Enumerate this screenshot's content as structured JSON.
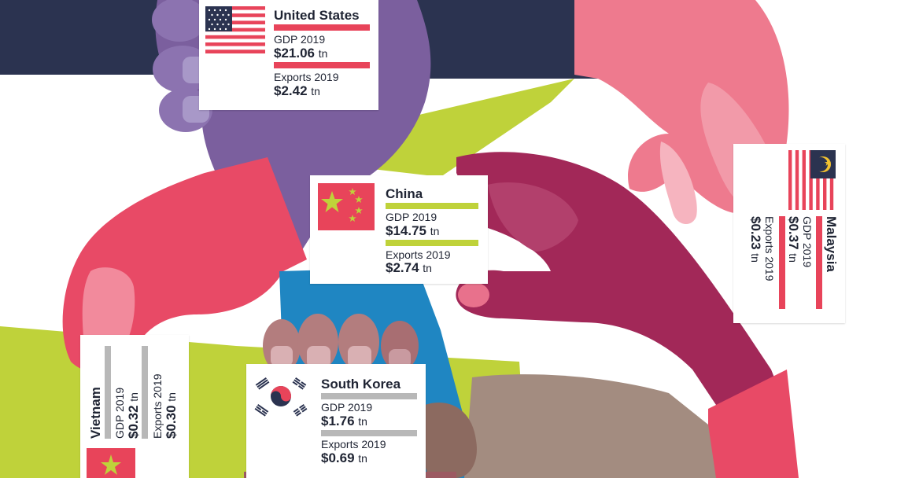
{
  "colors": {
    "navy": "#2b3350",
    "lime": "#bfd23a",
    "purple": "#7b5f9e",
    "pink": "#ee7a8e",
    "red": "#e84a66",
    "maroon": "#a22858",
    "blue": "#1f86c2",
    "taupe": "#a38c80",
    "us_bar": "#e8445a",
    "china_bar": "#bfd23a",
    "korea_bar": "#b8b8b8",
    "vietnam_bar": "#b8b8b8",
    "malaysia_bar": "#e8445a"
  },
  "cards": {
    "us": {
      "name": "United States",
      "gdp_label": "GDP 2019",
      "gdp_value": "$21.06",
      "exports_label": "Exports 2019",
      "exports_value": "$2.42",
      "unit": "tn",
      "flag": "usa-flag"
    },
    "china": {
      "name": "China",
      "gdp_label": "GDP 2019",
      "gdp_value": "$14.75",
      "exports_label": "Exports 2019",
      "exports_value": "$2.74",
      "unit": "tn",
      "flag": "china-flag"
    },
    "malaysia": {
      "name": "Malaysia",
      "gdp_label": "GDP 2019",
      "gdp_value": "$0.37",
      "exports_label": "Exports 2019",
      "exports_value": "$0.23",
      "unit": "tn",
      "flag": "malaysia-flag"
    },
    "korea": {
      "name": "South Korea",
      "gdp_label": "GDP 2019",
      "gdp_value": "$1.76",
      "exports_label": "Exports 2019",
      "exports_value": "$0.69",
      "unit": "tn",
      "flag": "south-korea-flag"
    },
    "vietnam": {
      "name": "Vietnam",
      "gdp_label": "GDP 2019",
      "gdp_value": "$0.32",
      "exports_label": "Exports 2019",
      "exports_value": "$0.30",
      "unit": "tn",
      "flag": "vietnam-flag"
    }
  }
}
